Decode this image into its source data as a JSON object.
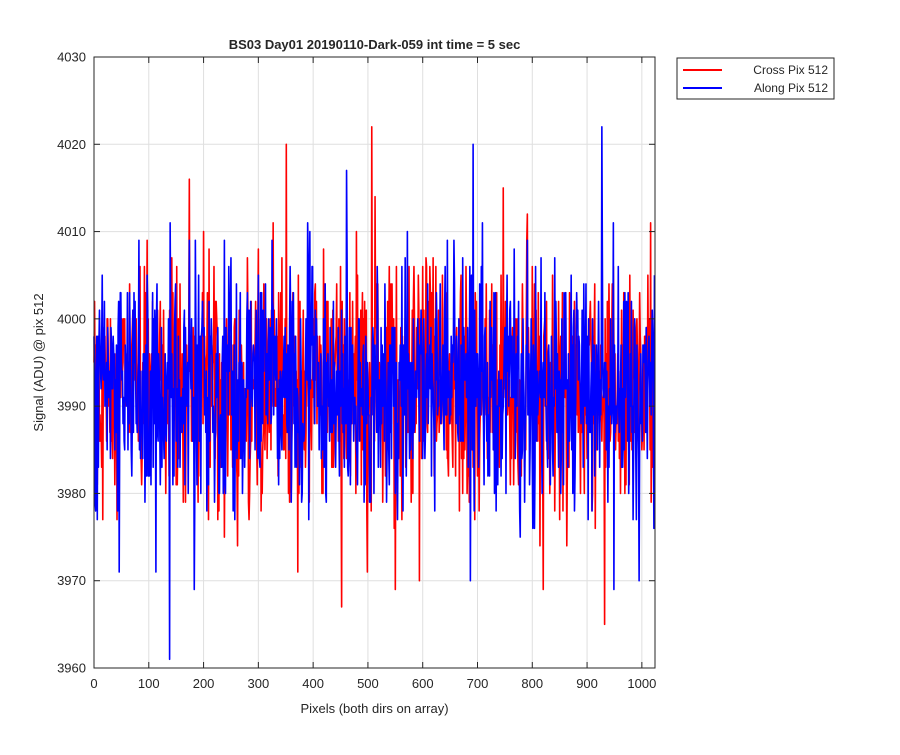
{
  "chart_data": {
    "type": "line",
    "title": "BS03 Day01 20190110-Dark-059 int time = 5 sec",
    "xlabel": "Pixels (both dirs on array)",
    "ylabel": "Signal (ADU) @ pix 512",
    "xlim": [
      0,
      1024
    ],
    "ylim": [
      3960,
      4030
    ],
    "xticks": [
      0,
      100,
      200,
      300,
      400,
      500,
      600,
      700,
      800,
      900,
      1000
    ],
    "yticks": [
      3960,
      3970,
      3980,
      3990,
      4000,
      4010,
      4020,
      4030
    ],
    "grid": true,
    "legend_position": "outside-top-right",
    "n_points": 1024,
    "noise": {
      "mean": 3992,
      "std": 7,
      "min": 3961,
      "max": 4022
    },
    "series": [
      {
        "name": "Cross Pix 512",
        "color": "#ff0000",
        "seed": 1234567,
        "samples": [
          {
            "x": 300,
            "y": 4008
          },
          {
            "x": 351,
            "y": 4020
          },
          {
            "x": 452,
            "y": 3967
          },
          {
            "x": 507,
            "y": 4022
          },
          {
            "x": 550,
            "y": 3969
          },
          {
            "x": 820,
            "y": 3969
          },
          {
            "x": 932,
            "y": 3965
          },
          {
            "x": 174,
            "y": 4016
          },
          {
            "x": 262,
            "y": 3974
          }
        ]
      },
      {
        "name": "Along Pix 512",
        "color": "#0000ff",
        "seed": 7654321,
        "samples": [
          {
            "x": 138,
            "y": 3961
          },
          {
            "x": 927,
            "y": 4022
          },
          {
            "x": 692,
            "y": 4020
          },
          {
            "x": 46,
            "y": 3971
          },
          {
            "x": 183,
            "y": 3969
          },
          {
            "x": 949,
            "y": 3969
          },
          {
            "x": 461,
            "y": 4017
          },
          {
            "x": 990,
            "y": 3977
          }
        ]
      }
    ]
  }
}
